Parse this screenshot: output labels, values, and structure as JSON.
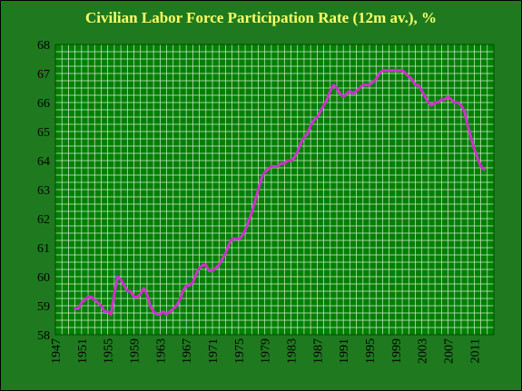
{
  "chart_data": {
    "type": "line",
    "title": "Civilian Labor Force Participation Rate (12m av.), %",
    "xlabel": "",
    "ylabel": "",
    "xlim": [
      1947,
      2014
    ],
    "ylim": [
      58,
      68
    ],
    "y_ticks": [
      58,
      59,
      60,
      61,
      62,
      63,
      64,
      65,
      66,
      67,
      68
    ],
    "x_tick_labels": [
      "1947",
      "1951",
      "1955",
      "1959",
      "1963",
      "1967",
      "1971",
      "1975",
      "1979",
      "1983",
      "1987",
      "1991",
      "1995",
      "1999",
      "2003",
      "2007",
      "2011"
    ],
    "grid": true,
    "legend": "none",
    "colors": {
      "background": "#008000",
      "grid": "#d8ead8",
      "line": "#cc33cc",
      "title": "#ffff66",
      "ticks": "#000000"
    },
    "series": [
      {
        "x": [
          1950,
          1950.5,
          1951,
          1951.5,
          1952,
          1952.5,
          1953,
          1953.5,
          1954,
          1954.5,
          1955,
          1955.5,
          1956,
          1956.5,
          1957,
          1957.5,
          1958,
          1958.5,
          1959,
          1959.5,
          1960,
          1960.5,
          1961,
          1961.5,
          1962,
          1962.5,
          1963,
          1963.5,
          1964,
          1964.5,
          1965,
          1965.5,
          1966,
          1966.5,
          1967,
          1967.5,
          1968,
          1968.5,
          1969,
          1969.5,
          1970,
          1970.5,
          1971,
          1971.5,
          1972,
          1972.5,
          1973,
          1973.5,
          1974,
          1974.5,
          1975,
          1975.5,
          1976,
          1976.5,
          1977,
          1977.5,
          1978,
          1978.5,
          1979,
          1979.5,
          1980,
          1980.5,
          1981,
          1981.5,
          1982,
          1982.5,
          1983,
          1983.5,
          1984,
          1984.5,
          1985,
          1985.5,
          1986,
          1986.5,
          1987,
          1987.5,
          1988,
          1988.5,
          1989,
          1989.5,
          1990,
          1990.5,
          1991,
          1991.5,
          1992,
          1992.5,
          1993,
          1993.5,
          1994,
          1994.5,
          1995,
          1995.5,
          1996,
          1996.5,
          1997,
          1997.5,
          1998,
          1998.5,
          1999,
          1999.5,
          2000,
          2000.5,
          2001,
          2001.5,
          2002,
          2002.5,
          2003,
          2003.5,
          2004,
          2004.5,
          2005,
          2005.5,
          2006,
          2006.5,
          2007,
          2007.5,
          2008,
          2008.5,
          2009,
          2009.5,
          2010,
          2010.5,
          2011,
          2011.5,
          2012,
          2012.5
        ],
        "values": [
          58.9,
          58.9,
          59.1,
          59.2,
          59.3,
          59.3,
          59.2,
          59.1,
          59.0,
          58.8,
          58.8,
          58.7,
          59.4,
          60.0,
          59.9,
          59.7,
          59.5,
          59.5,
          59.3,
          59.3,
          59.4,
          59.6,
          59.4,
          59.0,
          58.8,
          58.7,
          58.7,
          58.8,
          58.7,
          58.8,
          58.9,
          59.0,
          59.2,
          59.5,
          59.7,
          59.7,
          59.8,
          60.1,
          60.3,
          60.4,
          60.4,
          60.2,
          60.2,
          60.3,
          60.4,
          60.6,
          60.8,
          61.1,
          61.3,
          61.3,
          61.3,
          61.4,
          61.6,
          61.9,
          62.2,
          62.6,
          63.0,
          63.4,
          63.6,
          63.7,
          63.8,
          63.8,
          63.8,
          63.9,
          63.9,
          64.0,
          64.0,
          64.1,
          64.3,
          64.6,
          64.8,
          64.9,
          65.2,
          65.4,
          65.5,
          65.7,
          65.9,
          66.1,
          66.4,
          66.6,
          66.5,
          66.3,
          66.2,
          66.3,
          66.4,
          66.3,
          66.4,
          66.5,
          66.6,
          66.6,
          66.6,
          66.7,
          66.8,
          67.0,
          67.1,
          67.1,
          67.1,
          67.1,
          67.1,
          67.1,
          67.1,
          67.0,
          66.9,
          66.8,
          66.6,
          66.6,
          66.4,
          66.2,
          66.0,
          65.9,
          66.0,
          66.0,
          66.1,
          66.1,
          66.2,
          66.1,
          66.0,
          66.0,
          65.9,
          65.7,
          65.2,
          64.8,
          64.4,
          64.1,
          63.8,
          63.7
        ]
      }
    ]
  }
}
